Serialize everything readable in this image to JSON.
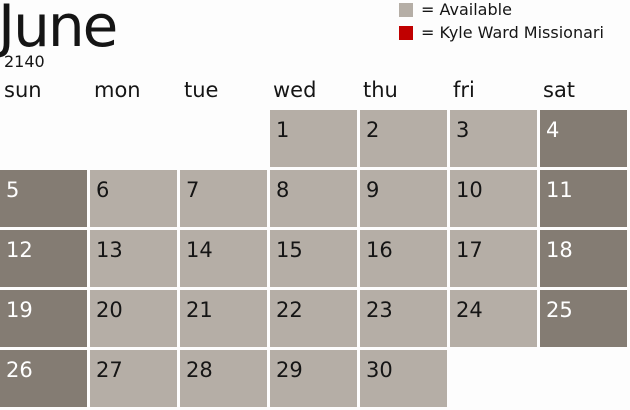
{
  "month": "June",
  "year": "2140",
  "legend": [
    {
      "label": "= Available",
      "color": "#b5aea6"
    },
    {
      "label": "= Kyle Ward Missionari",
      "color": "#c00000"
    }
  ],
  "weekdays": [
    "sun",
    "mon",
    "tue",
    "wed",
    "thu",
    "fri",
    "sat"
  ],
  "colors": {
    "weekday_cell": "#b5aea6",
    "weekend_cell": "#847c73",
    "weekday_text": "#151515",
    "weekend_text": "#ffffff"
  },
  "first_weekday_index": 3,
  "days": [
    "1",
    "2",
    "3",
    "4",
    "5",
    "6",
    "7",
    "8",
    "9",
    "10",
    "11",
    "12",
    "13",
    "14",
    "15",
    "16",
    "17",
    "18",
    "19",
    "20",
    "21",
    "22",
    "23",
    "24",
    "25",
    "26",
    "27",
    "28",
    "29",
    "30"
  ]
}
